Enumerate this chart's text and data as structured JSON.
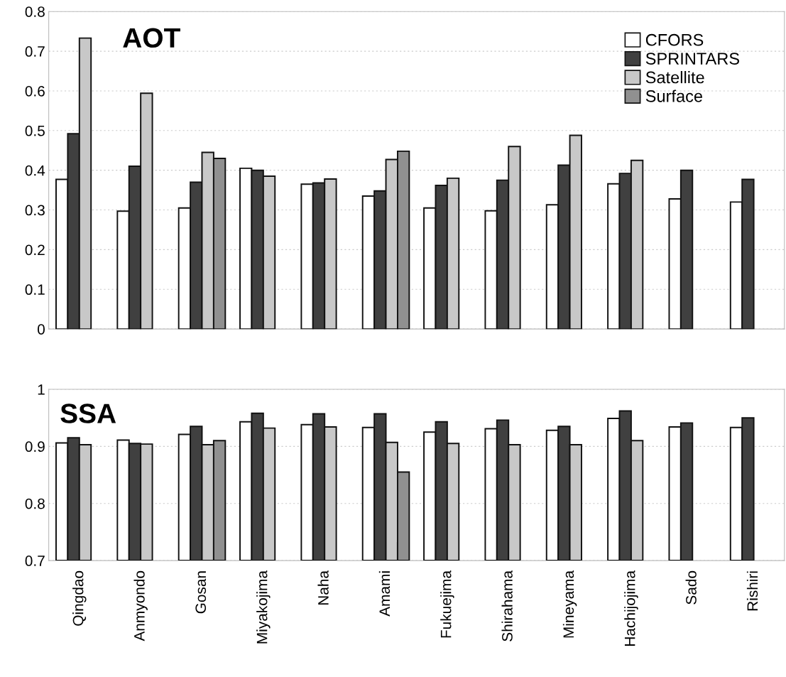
{
  "chart_data": [
    {
      "type": "bar",
      "title": "AOT",
      "categories": [
        null,
        null,
        null,
        null,
        null,
        null,
        null,
        null,
        null,
        null,
        null,
        null
      ],
      "series": [
        {
          "name": "CFORS",
          "color": "#ffffff",
          "values": [
            0.377,
            0.297,
            0.305,
            0.405,
            0.365,
            0.335,
            0.305,
            0.298,
            0.313,
            0.366,
            0.328,
            0.32
          ]
        },
        {
          "name": "SPRINTARS",
          "color": "#404040",
          "values": [
            0.492,
            0.41,
            0.37,
            0.4,
            0.368,
            0.348,
            0.362,
            0.375,
            0.413,
            0.392,
            0.4,
            0.377
          ]
        },
        {
          "name": "Satellite",
          "color": "#c8c8c8",
          "values": [
            0.733,
            0.594,
            0.445,
            0.385,
            0.378,
            0.427,
            0.38,
            0.46,
            0.488,
            0.425,
            null,
            null
          ]
        },
        {
          "name": "Surface",
          "color": "#909090",
          "values": [
            null,
            null,
            0.43,
            null,
            null,
            0.448,
            null,
            null,
            null,
            null,
            null,
            null
          ]
        }
      ],
      "ylim": [
        0,
        0.8
      ],
      "yticks": [
        {
          "value": 0,
          "label": "0"
        },
        0.1,
        0.2,
        0.3,
        0.4,
        0.5,
        0.6,
        0.7,
        0.8
      ],
      "grid": "y",
      "legend": "top right",
      "tick_labels": "y"
    },
    {
      "type": "bar",
      "title": "SSA",
      "categories": [
        "Qingdao",
        "Anmyondo",
        "Gosan",
        "Miyakojima",
        "Naha",
        "Amami",
        "Fukuejima",
        "Shirahama",
        "Mineyama",
        "Hachijojima",
        "Sado",
        "Rishiri"
      ],
      "series": [
        {
          "color": "#ffffff",
          "values": [
            0.906,
            0.911,
            0.921,
            0.943,
            0.938,
            0.933,
            0.925,
            0.931,
            0.928,
            0.949,
            0.934,
            0.933
          ]
        },
        {
          "color": "#404040",
          "values": [
            0.915,
            0.905,
            0.935,
            0.958,
            0.957,
            0.957,
            0.943,
            0.946,
            0.935,
            0.962,
            0.941,
            0.95
          ]
        },
        {
          "color": "#c8c8c8",
          "values": [
            0.903,
            0.904,
            0.903,
            0.932,
            0.934,
            0.907,
            0.905,
            0.903,
            0.903,
            0.91,
            null,
            null
          ]
        },
        {
          "color": "#909090",
          "values": [
            null,
            null,
            0.91,
            null,
            null,
            0.855,
            null,
            null,
            null,
            null,
            null,
            null
          ]
        }
      ],
      "ylim": [
        0.7,
        1
      ],
      "yticks": [
        0.7,
        0.8,
        0.9,
        {
          "value": 1,
          "label": "1"
        }
      ],
      "grid": "y"
    }
  ]
}
